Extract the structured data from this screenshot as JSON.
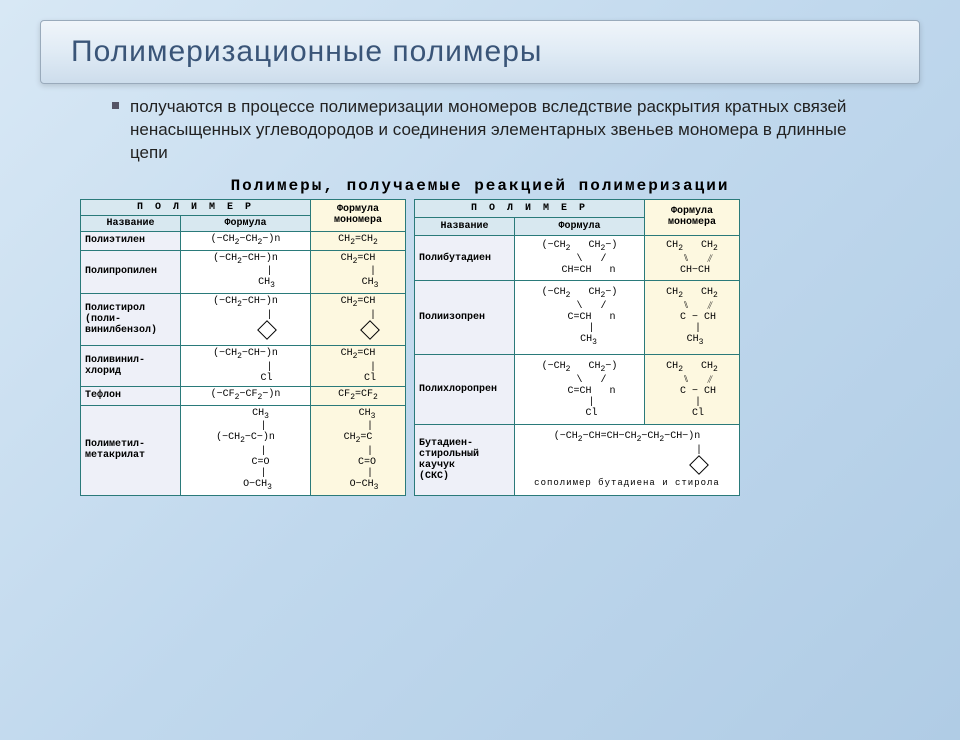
{
  "title": "Полимеризационные полимеры",
  "description": "получаются в процессе полимеризации мономеров вследствие раскрытия кратных связей ненасыщенных углеводородов и соединения элементарных звеньев мономера в длинные цепи",
  "table_title": "Полимеры, получаемые реакцией полимеризации",
  "headers": {
    "polymer_spaced": "П О Л И М Е Р",
    "name": "Название",
    "formula": "Формула",
    "monomer": "Формула мономера"
  },
  "left": [
    {
      "name": "Полиэтилен",
      "formula": "(−CH₂−CH₂−)n",
      "monomer": "CH₂=CH₂"
    },
    {
      "name": "Полипропилен",
      "formula": "(−CH₂−CH−)n\n        |\n       CH₃",
      "monomer": "CH₂=CH\n      |\n     CH₃"
    },
    {
      "name": "Полистирол (поли-винилбензол)",
      "formula": "(−CH₂−CH−)n\n        |\n       ⌬",
      "monomer": "CH₂=CH\n      |\n      ⌬"
    },
    {
      "name": "Поливинил-хлорид",
      "formula": "(−CH₂−CH−)n\n        |\n       Cl",
      "monomer": "CH₂=CH\n      |\n     Cl"
    },
    {
      "name": "Тефлон",
      "formula": "(−CF₂−CF₂−)n",
      "monomer": "CF₂=CF₂"
    },
    {
      "name": "Полиметил-метакрилат",
      "formula": "     CH₃\n      |\n(−CH₂−C−)n\n      |\n     C=O\n      |\n    O−CH₃",
      "monomer": "   CH₃\n    |\nCH₂=C\n    |\n   C=O\n    |\n  O−CH₃"
    }
  ],
  "right": [
    {
      "name": "Полибутадиен",
      "formula": "(−CH₂   CH₂−)\n    \\   /\n   CH=CH    n",
      "monomer": "CH₂   CH₂\n  ⑊   ⫽\n CH−CH"
    },
    {
      "name": "Полиизопрен",
      "formula": "(−CH₂   CH₂−)\n    \\   /\n    C=CH   n\n    |\n   CH₃",
      "monomer": "CH₂   CH₂\n  ⑊   ⫽\n  C − CH\n  |\n CH₃"
    },
    {
      "name": "Полихлоропрен",
      "formula": "(−CH₂   CH₂−)\n    \\   /\n    C=CH   n\n    |\n    Cl",
      "monomer": "CH₂   CH₂\n  ⑊   ⫽\n  C − CH\n  |\n  Cl"
    },
    {
      "name": "Бутадиен-стирольный каучук (СКС)",
      "formula": "(−CH₂−CH=CH−CH₂−CH₂−CH−)n\n                        |\n                        ⌬",
      "monomer": "сополимер бутадиена и стирола"
    }
  ],
  "colors": {
    "title_text": "#3a5578",
    "border": "#2a7a7a",
    "hdr_bg": "#d8e8f0",
    "mono_bg": "#fdf8e0",
    "name_bg": "#eef0f8"
  }
}
